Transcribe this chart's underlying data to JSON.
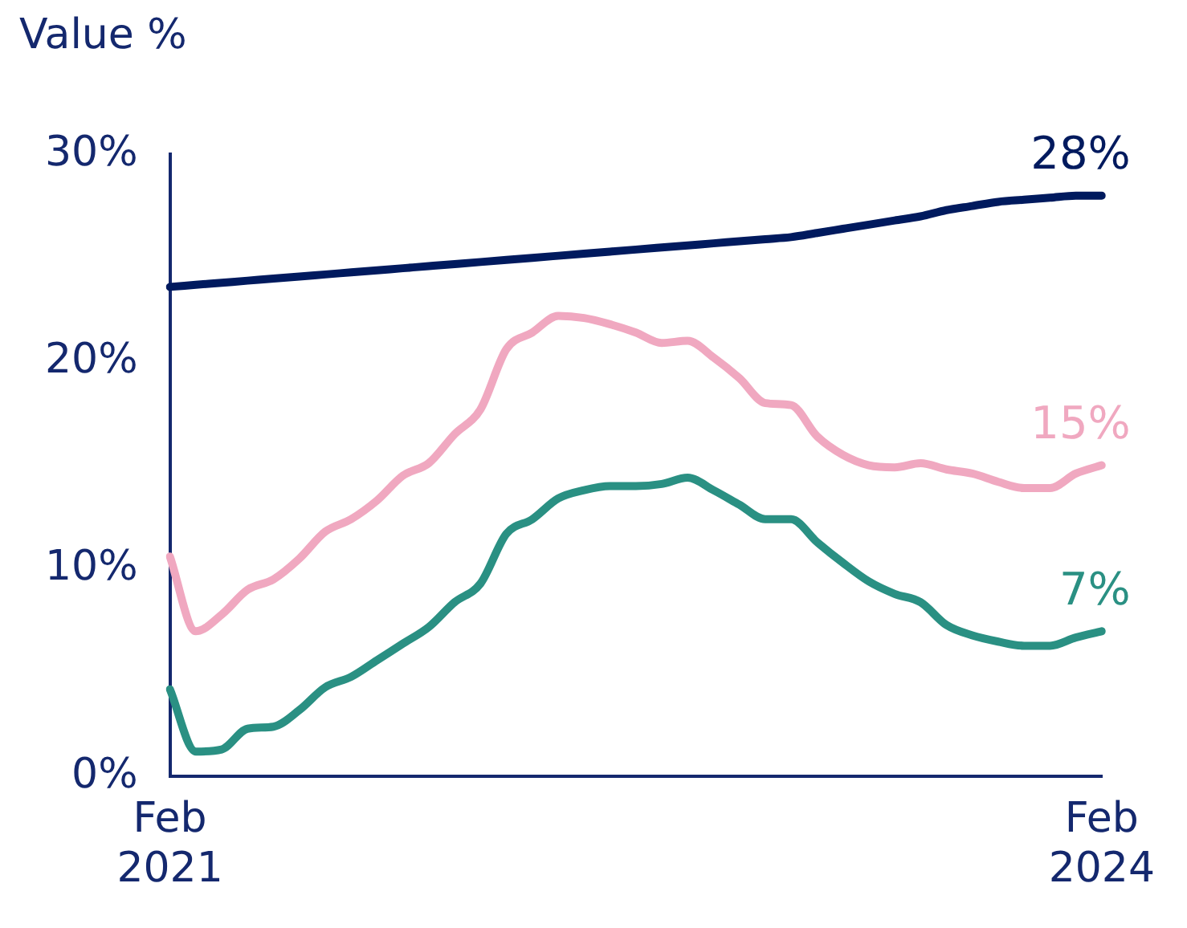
{
  "chart_data": {
    "type": "line",
    "ylabel": "Value %",
    "categories": [
      "Feb 2021",
      null,
      null,
      null,
      null,
      null,
      null,
      null,
      null,
      null,
      null,
      null,
      null,
      null,
      null,
      null,
      null,
      null,
      null,
      null,
      null,
      null,
      null,
      null,
      null,
      null,
      null,
      null,
      null,
      null,
      null,
      null,
      null,
      null,
      null,
      null,
      "Feb 2024"
    ],
    "series": [
      {
        "color": "#001a5e",
        "values": [
          23.6,
          23.7,
          23.8,
          23.9,
          24.0,
          24.1,
          24.2,
          24.3,
          24.4,
          24.5,
          24.6,
          24.7,
          24.8,
          24.9,
          25.0,
          25.1,
          25.2,
          25.3,
          25.4,
          25.5,
          25.6,
          25.7,
          25.8,
          25.9,
          26.0,
          26.2,
          26.4,
          26.6,
          26.8,
          27.0,
          27.3,
          27.5,
          27.7,
          27.8,
          27.9,
          28.0,
          28
        ],
        "value_labels": [
          null,
          null,
          null,
          null,
          null,
          null,
          null,
          null,
          null,
          null,
          null,
          null,
          null,
          null,
          null,
          null,
          null,
          null,
          null,
          null,
          null,
          null,
          null,
          null,
          null,
          null,
          null,
          null,
          null,
          null,
          null,
          null,
          null,
          null,
          null,
          null,
          "28%"
        ]
      },
      {
        "color": "#f0a8c0",
        "values": [
          10.6,
          7.0,
          7.8,
          9.0,
          9.5,
          10.5,
          11.8,
          12.4,
          13.3,
          14.5,
          15.1,
          16.5,
          17.7,
          20.6,
          21.4,
          22.2,
          22.1,
          21.8,
          21.4,
          20.9,
          21.0,
          20.2,
          19.2,
          18.0,
          17.9,
          16.4,
          15.5,
          15.0,
          14.9,
          15.1,
          14.8,
          14.6,
          14.2,
          13.9,
          13.9,
          14.6,
          15
        ],
        "value_labels": [
          null,
          null,
          null,
          null,
          null,
          null,
          null,
          null,
          null,
          null,
          null,
          null,
          null,
          null,
          null,
          null,
          null,
          null,
          null,
          null,
          null,
          null,
          null,
          null,
          null,
          null,
          null,
          null,
          null,
          null,
          null,
          null,
          null,
          null,
          null,
          null,
          "15%"
        ]
      },
      {
        "color": "#2a9083",
        "values": [
          4.2,
          1.2,
          1.3,
          2.3,
          2.4,
          3.2,
          4.3,
          4.8,
          5.6,
          6.4,
          7.2,
          8.4,
          9.3,
          11.7,
          12.4,
          13.4,
          13.8,
          14.0,
          14.0,
          14.1,
          14.4,
          13.8,
          13.1,
          12.4,
          12.4,
          11.3,
          10.3,
          9.4,
          8.8,
          8.4,
          7.3,
          6.8,
          6.5,
          6.3,
          6.3,
          6.7,
          7
        ],
        "value_labels": [
          null,
          null,
          null,
          null,
          null,
          null,
          null,
          null,
          null,
          null,
          null,
          null,
          null,
          null,
          null,
          null,
          null,
          null,
          null,
          null,
          null,
          null,
          null,
          null,
          null,
          null,
          null,
          null,
          null,
          null,
          null,
          null,
          null,
          null,
          null,
          null,
          "7%"
        ]
      }
    ],
    "ylim": [
      0,
      30
    ],
    "yticks": [
      {
        "value": 0,
        "label": "0%"
      },
      {
        "value": 10,
        "label": "10%"
      },
      {
        "value": 20,
        "label": "20%"
      },
      {
        "value": 30,
        "label": "30%"
      }
    ],
    "grid": false,
    "legend": false,
    "marker": "none",
    "line_style": "solid"
  }
}
